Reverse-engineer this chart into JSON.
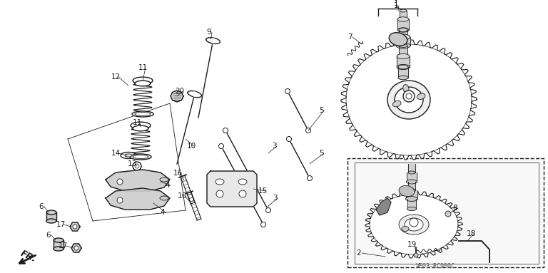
{
  "bg_color": "#ffffff",
  "line_color": "#1a1a1a",
  "gray_fill": "#888888",
  "light_gray": "#cccccc",
  "watermark": "VE03-RC900C"
}
